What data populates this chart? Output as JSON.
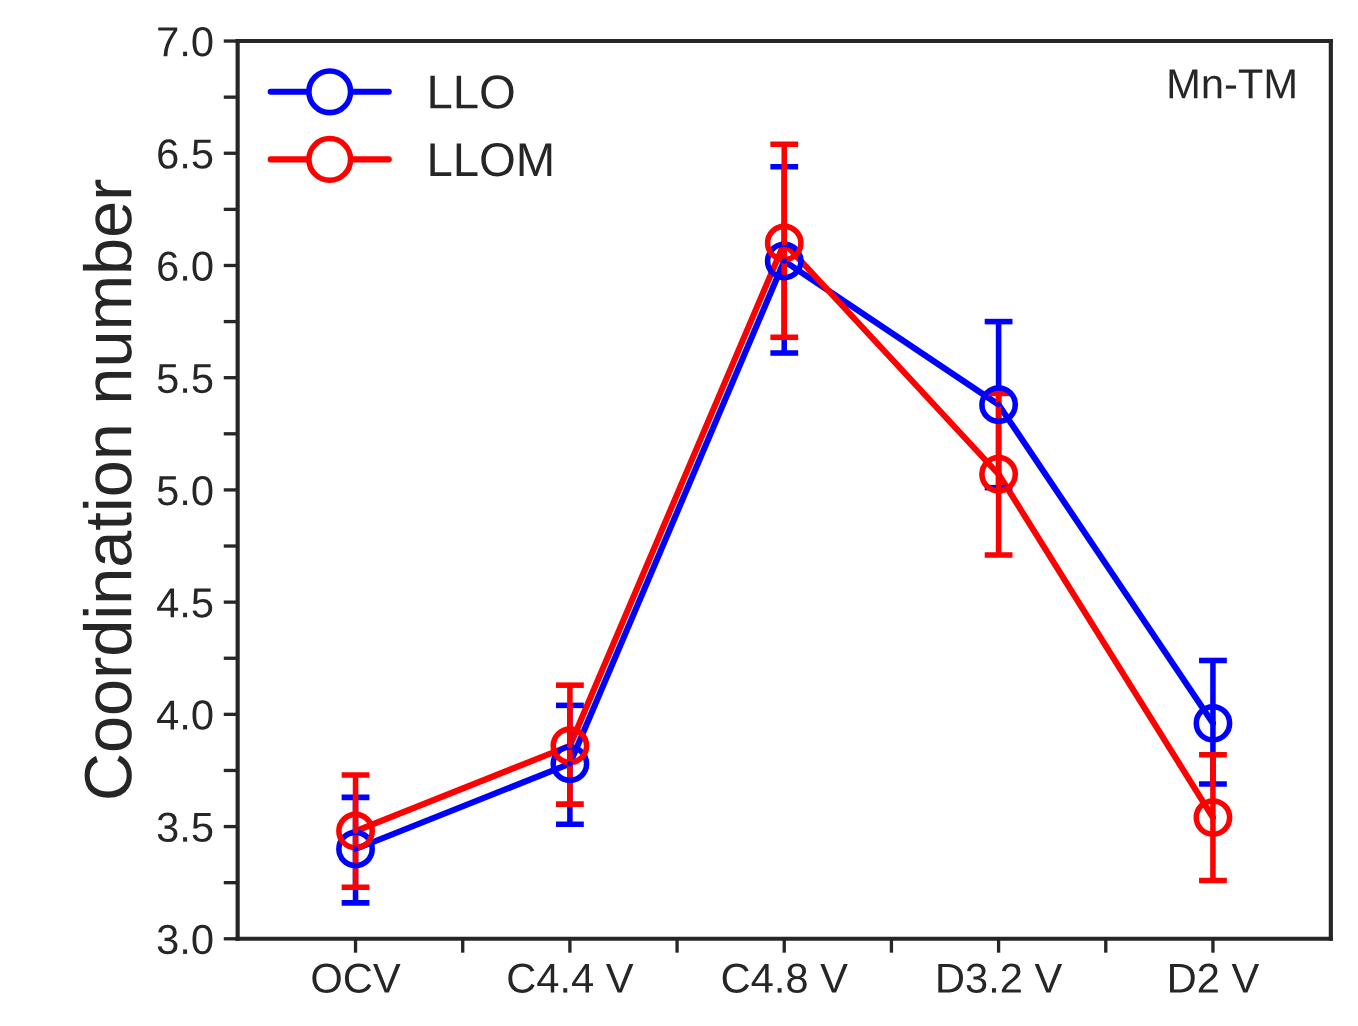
{
  "chart_data": {
    "type": "line",
    "ylabel": "Coordination number",
    "categories": [
      "OCV",
      "C4.4 V",
      "C4.8 V",
      "D3.2 V",
      "D2 V"
    ],
    "series": [
      {
        "name": "LLO",
        "color": "#0000ff",
        "values": [
          3.4,
          3.78,
          6.02,
          5.38,
          3.96
        ],
        "errors": [
          [
            3.16,
            3.63
          ],
          [
            3.51,
            4.04
          ],
          [
            5.61,
            6.44
          ],
          [
            5.01,
            5.75
          ],
          [
            3.69,
            4.24
          ]
        ]
      },
      {
        "name": "LLOM",
        "color": "#ff0000",
        "values": [
          3.48,
          3.86,
          6.1,
          5.07,
          3.54
        ],
        "errors": [
          [
            3.23,
            3.73
          ],
          [
            3.6,
            4.13
          ],
          [
            5.68,
            6.54
          ],
          [
            4.71,
            5.43
          ],
          [
            3.26,
            3.82
          ]
        ]
      }
    ],
    "ylim": [
      3.0,
      7.0
    ],
    "yticks": [
      {
        "value": 3,
        "label": "3.0"
      },
      {
        "value": 3.25,
        "label": null
      },
      3.5,
      {
        "value": 3.75,
        "label": null
      },
      {
        "value": 4,
        "label": "4.0"
      },
      {
        "value": 4.25,
        "label": null
      },
      4.5,
      {
        "value": 4.75,
        "label": null
      },
      {
        "value": 5,
        "label": "5.0"
      },
      {
        "value": 5.25,
        "label": null
      },
      5.5,
      {
        "value": 5.75,
        "label": null
      },
      {
        "value": 6,
        "label": "6.0"
      },
      {
        "value": 6.25,
        "label": null
      },
      6.5,
      {
        "value": 6.75,
        "label": null
      },
      {
        "value": 7,
        "label": "7.0"
      }
    ],
    "annotations": [
      "Mn-TM"
    ],
    "marker": "circle",
    "line_style": "solid",
    "grid": false,
    "legend": "top left"
  }
}
